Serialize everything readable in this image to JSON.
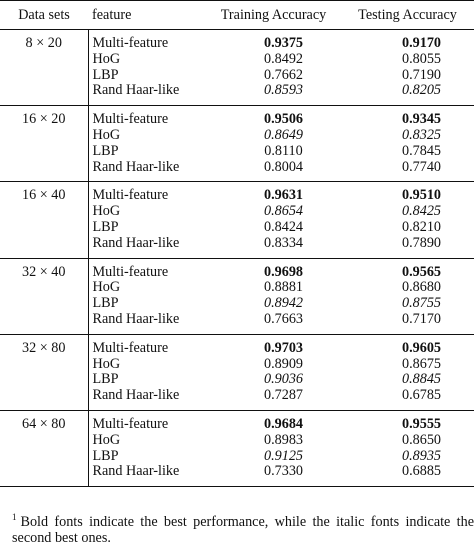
{
  "headers": [
    "Data sets",
    "feature",
    "Training Accuracy",
    "Testing Accuracy"
  ],
  "groups": [
    {
      "dataset": "8 × 20",
      "rows": [
        {
          "feature": "Multi-feature",
          "train": "0.9375",
          "train_style": "bold",
          "test": "0.9170",
          "test_style": "bold"
        },
        {
          "feature": "HoG",
          "train": "0.8492",
          "train_style": "normal",
          "test": "0.8055",
          "test_style": "normal"
        },
        {
          "feature": "LBP",
          "train": "0.7662",
          "train_style": "normal",
          "test": "0.7190",
          "test_style": "normal"
        },
        {
          "feature": "Rand Haar-like",
          "train": "0.8593",
          "train_style": "italic",
          "test": "0.8205",
          "test_style": "italic"
        }
      ]
    },
    {
      "dataset": "16 × 20",
      "rows": [
        {
          "feature": "Multi-feature",
          "train": "0.9506",
          "train_style": "bold",
          "test": "0.9345",
          "test_style": "bold"
        },
        {
          "feature": "HoG",
          "train": "0.8649",
          "train_style": "italic",
          "test": "0.8325",
          "test_style": "italic"
        },
        {
          "feature": "LBP",
          "train": "0.8110",
          "train_style": "normal",
          "test": "0.7845",
          "test_style": "normal"
        },
        {
          "feature": "Rand Haar-like",
          "train": "0.8004",
          "train_style": "normal",
          "test": "0.7740",
          "test_style": "normal"
        }
      ]
    },
    {
      "dataset": "16 × 40",
      "rows": [
        {
          "feature": "Multi-feature",
          "train": "0.9631",
          "train_style": "bold",
          "test": "0.9510",
          "test_style": "bold"
        },
        {
          "feature": "HoG",
          "train": "0.8654",
          "train_style": "italic",
          "test": "0.8425",
          "test_style": "italic"
        },
        {
          "feature": "LBP",
          "train": "0.8424",
          "train_style": "normal",
          "test": "0.8210",
          "test_style": "normal"
        },
        {
          "feature": "Rand Haar-like",
          "train": "0.8334",
          "train_style": "normal",
          "test": "0.7890",
          "test_style": "normal"
        }
      ]
    },
    {
      "dataset": "32 × 40",
      "rows": [
        {
          "feature": "Multi-feature",
          "train": "0.9698",
          "train_style": "bold",
          "test": "0.9565",
          "test_style": "bold"
        },
        {
          "feature": "HoG",
          "train": "0.8881",
          "train_style": "normal",
          "test": "0.8680",
          "test_style": "normal"
        },
        {
          "feature": "LBP",
          "train": "0.8942",
          "train_style": "italic",
          "test": "0.8755",
          "test_style": "italic"
        },
        {
          "feature": "Rand Haar-like",
          "train": "0.7663",
          "train_style": "normal",
          "test": "0.7170",
          "test_style": "normal"
        }
      ]
    },
    {
      "dataset": "32 × 80",
      "rows": [
        {
          "feature": "Multi-feature",
          "train": "0.9703",
          "train_style": "bold",
          "test": "0.9605",
          "test_style": "bold"
        },
        {
          "feature": "HoG",
          "train": "0.8909",
          "train_style": "normal",
          "test": "0.8675",
          "test_style": "normal"
        },
        {
          "feature": "LBP",
          "train": "0.9036",
          "train_style": "italic",
          "test": "0.8845",
          "test_style": "italic"
        },
        {
          "feature": "Rand Haar-like",
          "train": "0.7287",
          "train_style": "normal",
          "test": "0.6785",
          "test_style": "normal"
        }
      ]
    },
    {
      "dataset": "64 × 80",
      "rows": [
        {
          "feature": "Multi-feature",
          "train": "0.9684",
          "train_style": "bold",
          "test": "0.9555",
          "test_style": "bold"
        },
        {
          "feature": "HoG",
          "train": "0.8983",
          "train_style": "normal",
          "test": "0.8650",
          "test_style": "normal"
        },
        {
          "feature": "LBP",
          "train": "0.9125",
          "train_style": "italic",
          "test": "0.8935",
          "test_style": "italic"
        },
        {
          "feature": "Rand Haar-like",
          "train": "0.7330",
          "train_style": "normal",
          "test": "0.6885",
          "test_style": "normal"
        }
      ]
    }
  ],
  "footnote": {
    "marker": "1",
    "text": "Bold fonts indicate the best performance, while the italic fonts indicate the second best ones."
  }
}
